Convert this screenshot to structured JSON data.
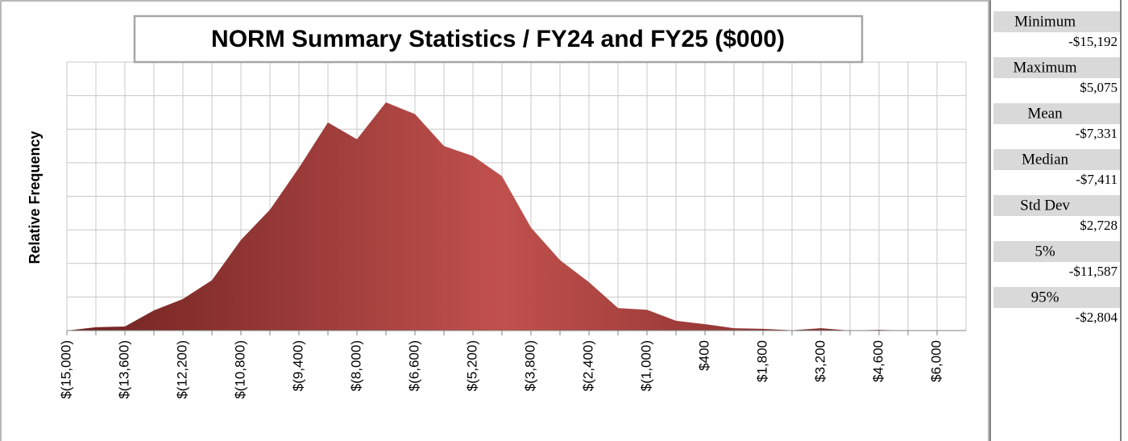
{
  "chart_data": {
    "type": "area",
    "title": "NORM Summary Statistics / FY24 and FY25 ($000)",
    "ylabel": "Relative Frequency",
    "color": "#c0504d",
    "x": [
      -15000,
      -14300,
      -13600,
      -12900,
      -12200,
      -11500,
      -10800,
      -10100,
      -9400,
      -8700,
      -8000,
      -7300,
      -6600,
      -5900,
      -5200,
      -4500,
      -3800,
      -3100,
      -2400,
      -1700,
      -1000,
      -300,
      400,
      1100,
      1800,
      2500,
      3200,
      3900,
      4600,
      5300,
      6000
    ],
    "values": [
      0,
      0.1,
      0.12,
      0.6,
      0.94,
      1.5,
      2.7,
      3.6,
      4.85,
      6.2,
      5.7,
      6.8,
      6.45,
      5.5,
      5.2,
      4.6,
      3.07,
      2.1,
      1.44,
      0.67,
      0.62,
      0.29,
      0.19,
      0.07,
      0.05,
      0.01,
      0.07,
      0,
      0.02,
      0,
      0
    ],
    "xlim": [
      -15000,
      6700
    ],
    "xticks": [
      {
        "value": -15000,
        "label": "$(15,000)"
      },
      {
        "value": -13600,
        "label": "$(13,600)"
      },
      {
        "value": -12200,
        "label": "$(12,200)"
      },
      {
        "value": -10800,
        "label": "$(10,800)"
      },
      {
        "value": -9400,
        "label": "$(9,400)"
      },
      {
        "value": -8000,
        "label": "$(8,000)"
      },
      {
        "value": -6600,
        "label": "$(6,600)"
      },
      {
        "value": -5200,
        "label": "$(5,200)"
      },
      {
        "value": -3800,
        "label": "$(3,800)"
      },
      {
        "value": -2400,
        "label": "$(2,400)"
      },
      {
        "value": -1000,
        "label": "$(1,000)"
      },
      {
        "value": 400,
        "label": "$400"
      },
      {
        "value": 1800,
        "label": "$1,800"
      },
      {
        "value": 3200,
        "label": "$3,200"
      },
      {
        "value": 4600,
        "label": "$4,600"
      },
      {
        "value": 6000,
        "label": "$6,000"
      }
    ],
    "ylim": [
      0,
      8
    ],
    "yticks": [
      0,
      1,
      2,
      3,
      4,
      5,
      6,
      7,
      8
    ],
    "grid": true
  },
  "stats": [
    {
      "label": "Minimum",
      "value": "-$15,192"
    },
    {
      "label": "Maximum",
      "value": "$5,075"
    },
    {
      "label": "Mean",
      "value": "-$7,331"
    },
    {
      "label": "Median",
      "value": "-$7,411"
    },
    {
      "label": "Std Dev",
      "value": "$2,728"
    },
    {
      "label": "5%",
      "value": "-$11,587"
    },
    {
      "label": "95%",
      "value": "-$2,804"
    }
  ]
}
